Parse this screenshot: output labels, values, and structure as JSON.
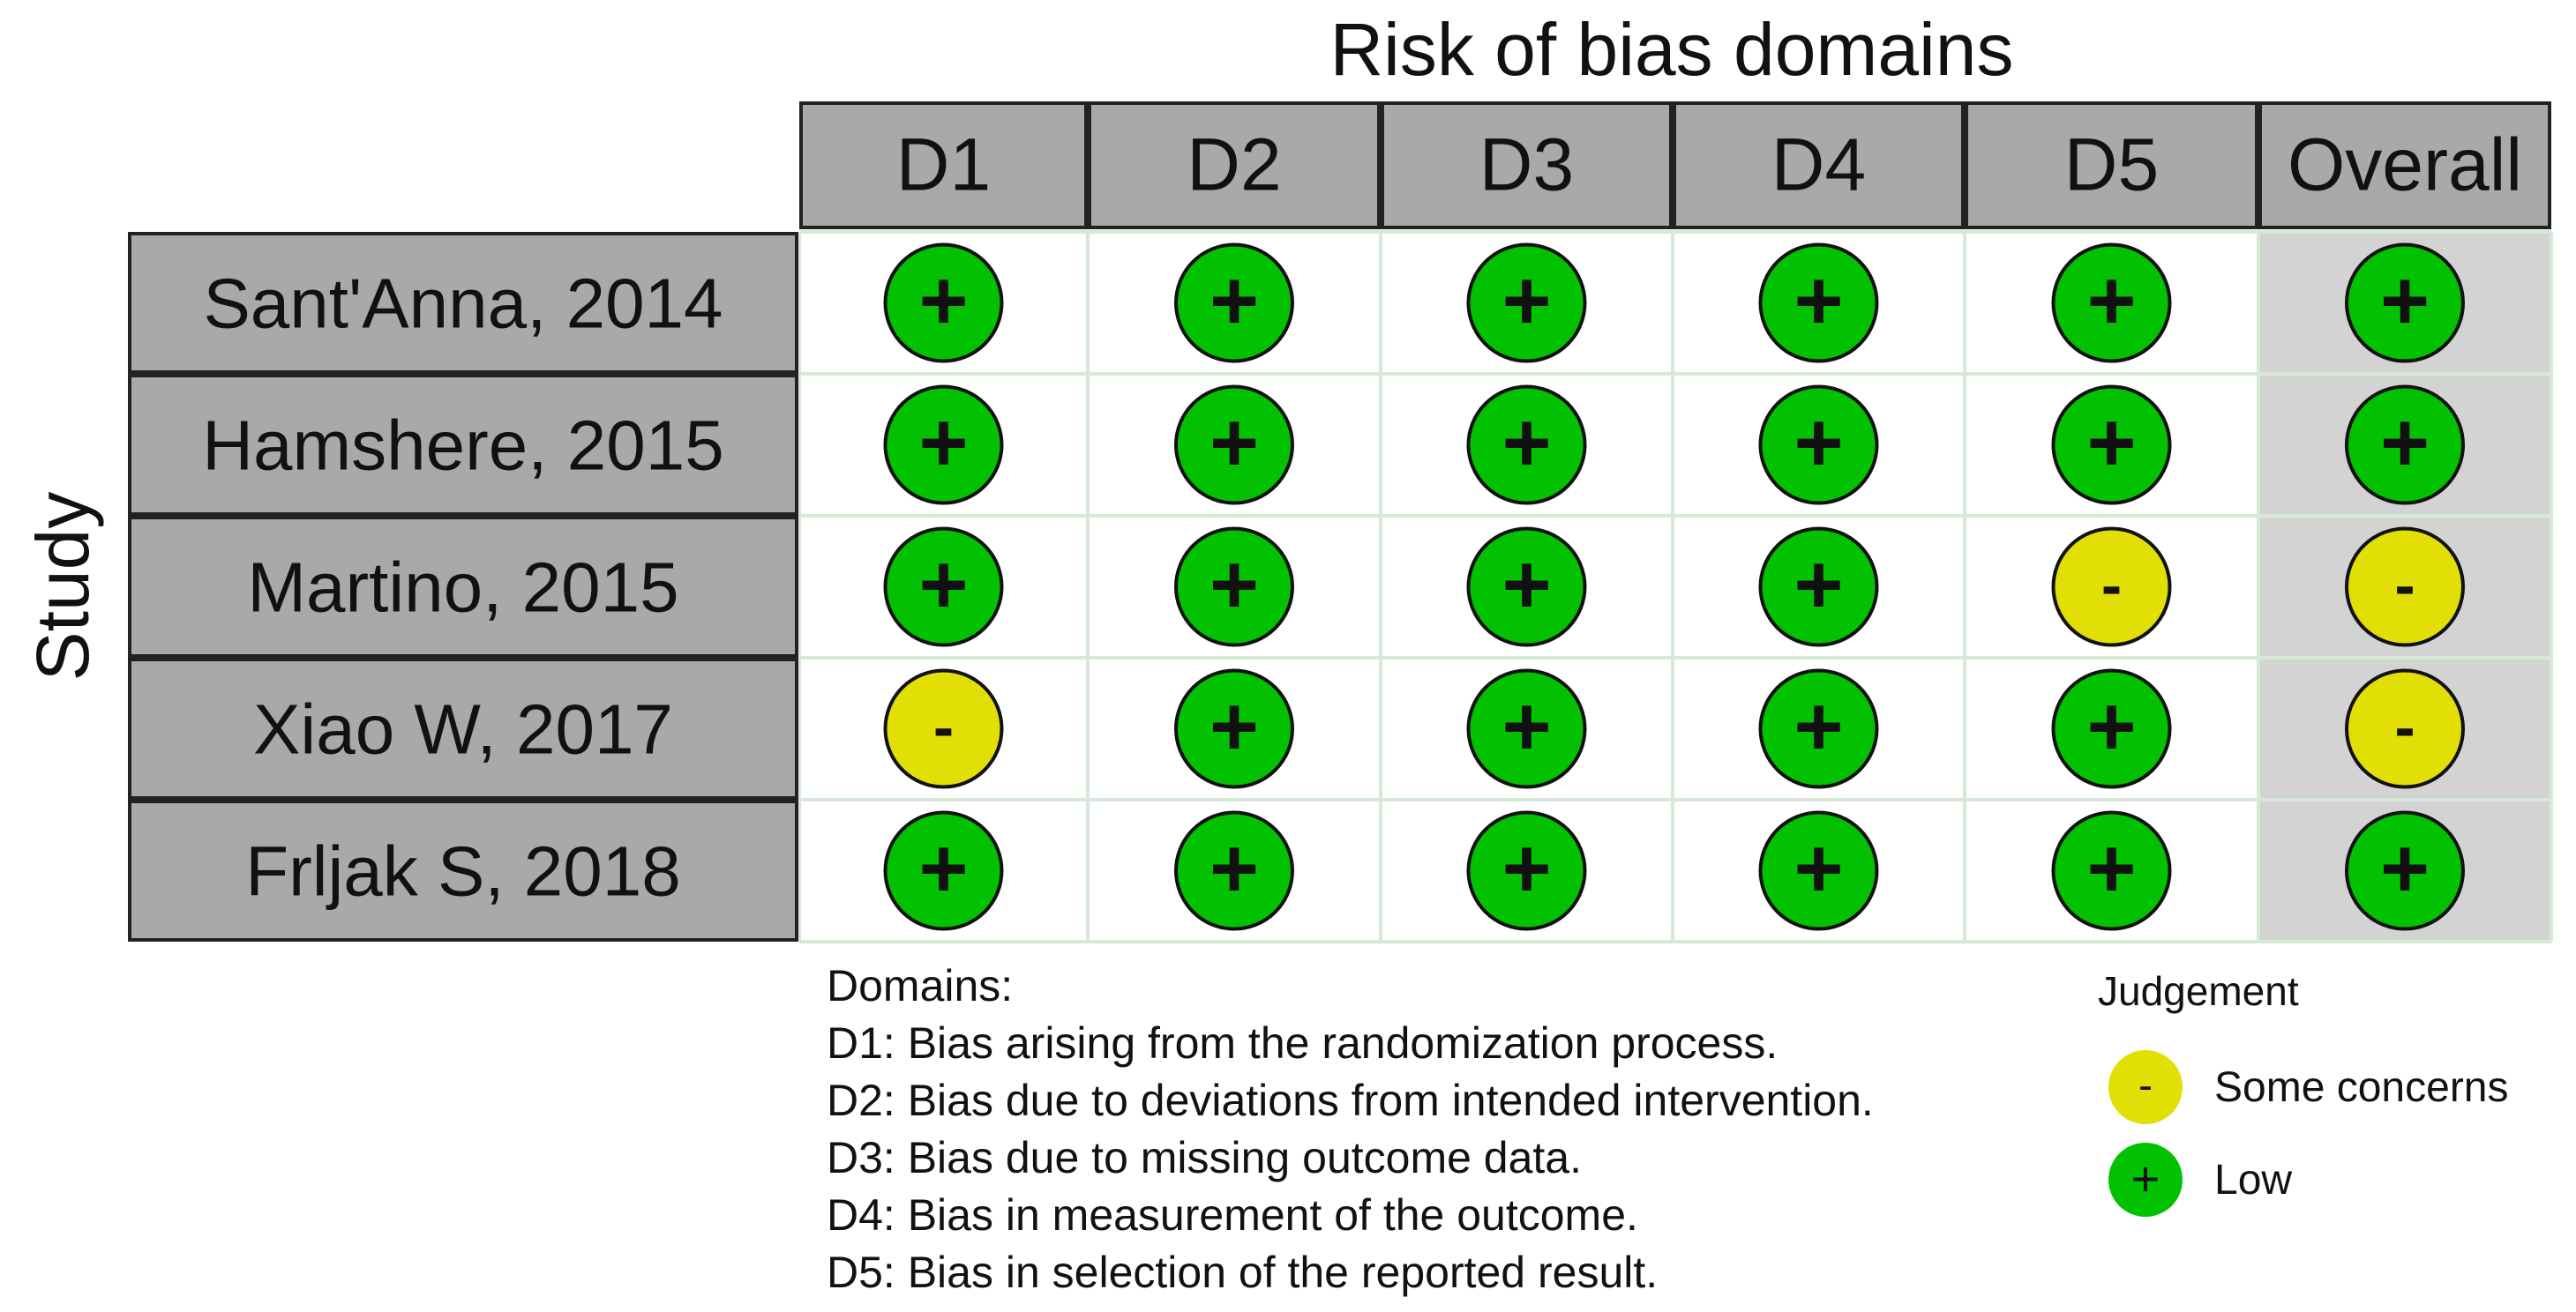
{
  "chart_data": {
    "type": "table",
    "title": "Risk of bias domains",
    "ylabel": "Study",
    "columns": [
      "D1",
      "D2",
      "D3",
      "D4",
      "D5",
      "Overall"
    ],
    "rows": [
      {
        "study": "Sant'Anna, 2014",
        "judgements": [
          "+",
          "+",
          "+",
          "+",
          "+",
          "+"
        ]
      },
      {
        "study": "Hamshere, 2015",
        "judgements": [
          "+",
          "+",
          "+",
          "+",
          "+",
          "+"
        ]
      },
      {
        "study": "Martino, 2015",
        "judgements": [
          "+",
          "+",
          "+",
          "+",
          "-",
          "-"
        ]
      },
      {
        "study": "Xiao W, 2017",
        "judgements": [
          "-",
          "+",
          "+",
          "+",
          "+",
          "-"
        ]
      },
      {
        "study": "Frljak S, 2018",
        "judgements": [
          "+",
          "+",
          "+",
          "+",
          "+",
          "+"
        ]
      }
    ],
    "domains_title": "Domains:",
    "domains": [
      "D1: Bias arising from the randomization process.",
      "D2: Bias due to deviations from intended intervention.",
      "D3: Bias due to missing outcome data.",
      "D4: Bias in measurement of the outcome.",
      "D5: Bias in selection of the reported result."
    ],
    "legend": {
      "title": "Judgement",
      "placement": "bottom-right",
      "items": [
        {
          "symbol": "-",
          "label": "Some concerns",
          "color": "#e2df07"
        },
        {
          "symbol": "+",
          "label": "Low",
          "color": "#02c100"
        }
      ]
    },
    "colors": {
      "low": "#02c100",
      "some_concerns": "#e2df07",
      "header_fill": "#a9a9a9",
      "overall_fill": "#d3d3d3",
      "grid_line": "#d6e8d6"
    }
  }
}
